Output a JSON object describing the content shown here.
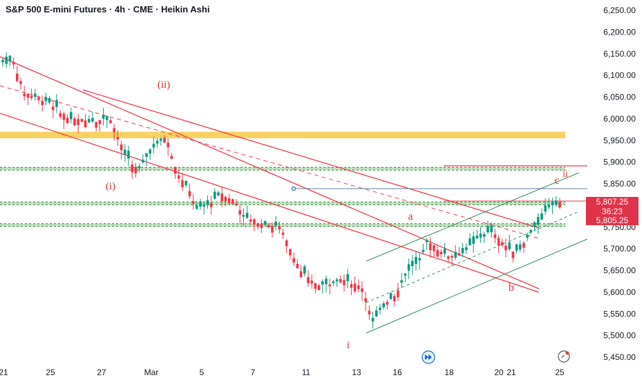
{
  "title": "S&P 500 E-mini Futures · 4h · CME · Heikin Ashi",
  "price_tags": {
    "current_price": "5,807.25",
    "countdown": "36:23",
    "second_price": "5,805.25"
  },
  "colors": {
    "up": "#089981",
    "down": "#f23645",
    "yellow_zone": "#f7c948",
    "green_zone": "#a5d6a7",
    "channel_red": "#f23645",
    "channel_green": "#2e8b57",
    "label_red": "#d32f2f"
  },
  "icons": [
    "fast-forward-icon",
    "replay-icon"
  ],
  "chart_data": {
    "type": "candlestick",
    "title": "S&P 500 E-mini Futures · 4h · CME · Heikin Ashi",
    "y_axis": {
      "range": [
        5425,
        6275
      ],
      "ticks": [
        6250,
        6200,
        6150,
        6100,
        6050,
        6000,
        5950,
        5900,
        5850,
        5800,
        5750,
        5700,
        5650,
        5600,
        5550,
        5500,
        5450
      ],
      "tick_labels": [
        "6,250.00",
        "6,200.00",
        "6,150.00",
        "6,100.00",
        "6,050.00",
        "6,000.00",
        "5,950.00",
        "5,900.00",
        "5,850.00",
        "5,800.00",
        "5,750.00",
        "5,700.00",
        "5,650.00",
        "5,600.00",
        "5,550.00",
        "5,500.00",
        "5,450.00"
      ]
    },
    "x_axis": {
      "labels": [
        "21",
        "25",
        "27",
        "Mar",
        "5",
        "7",
        "11",
        "13",
        "16",
        "18",
        "20",
        "21",
        "25"
      ]
    },
    "wave_labels": [
      "(ii)",
      "(i)",
      "i",
      "a",
      "b",
      "c",
      "ii"
    ],
    "zones": [
      {
        "name": "resistance-yellow",
        "from": 5955,
        "to": 5970
      },
      {
        "name": "support-green-1",
        "from": 5882,
        "to": 5888
      },
      {
        "name": "support-green-2",
        "from": 5802,
        "to": 5808
      },
      {
        "name": "support-green-3",
        "from": 5752,
        "to": 5758
      }
    ],
    "levels": {
      "current": 5807.25,
      "second": 5805.25,
      "blue_line": 5835
    },
    "grid": false
  }
}
